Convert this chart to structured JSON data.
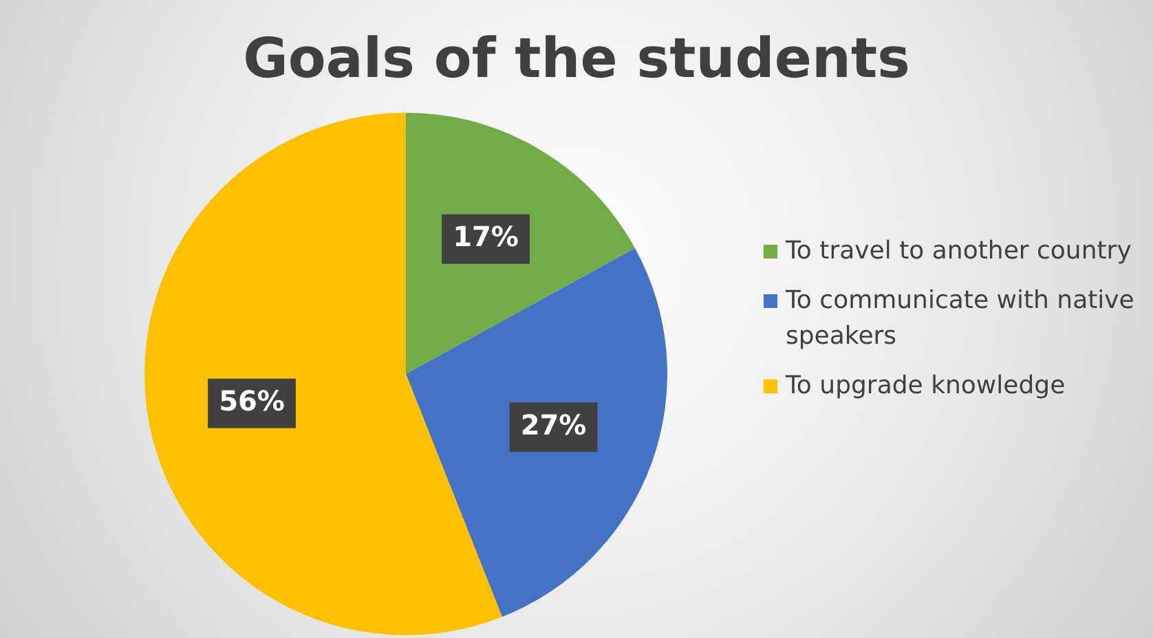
{
  "chart_data": {
    "type": "pie",
    "title": "Goals of the students",
    "categories": [
      "To travel to another country",
      "To communicate with native speakers",
      "To upgrade knowledge"
    ],
    "values": [
      17,
      27,
      56
    ],
    "colors": [
      "#70ad47",
      "#4472c4",
      "#ffc000"
    ],
    "value_labels": [
      "17%",
      "27%",
      "56%"
    ],
    "legend": "right"
  }
}
